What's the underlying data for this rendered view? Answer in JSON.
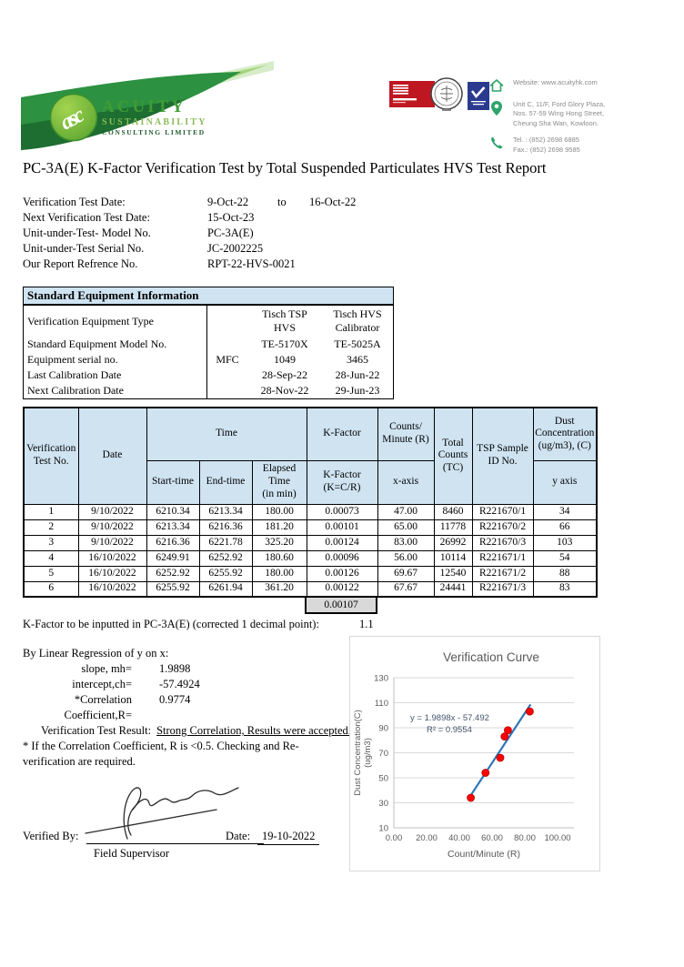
{
  "branding": {
    "logo_initials": "asc",
    "company_name": "ACUITY",
    "company_sub1": "SUSTAINABILITY",
    "company_sub2": "CONSULTING LIMITED",
    "brand_green": "#3f9c35"
  },
  "contact": {
    "website": "Website: www.acuityhk.com",
    "address1": "Unit C, 11/F, Ford Glory Plaza,",
    "address2": "Nos. 57-59 Wing Hong Street,",
    "address3": "Cheung Sha Wan, Kowloon.",
    "tel": "Tel. : (852) 2698 6885",
    "fax": "Fax.: (852) 2698 9585"
  },
  "title": "PC-3A(E)  K-Factor Verification Test by Total Suspended Particulates HVS Test Report",
  "info": {
    "rows": [
      {
        "label": "Verification Test Date:",
        "value": "9-Oct-22",
        "to": "to",
        "value2": "16-Oct-22"
      },
      {
        "label": "Next Verification Test Date:",
        "value": "15-Oct-23"
      },
      {
        "label": "Unit-under-Test- Model No.",
        "value": "PC-3A(E)"
      },
      {
        "label": "Unit-under-Test Serial No.",
        "value": "JC-2002225"
      },
      {
        "label": "Our Report Refrence No.",
        "value": "RPT-22-HVS-0021"
      }
    ]
  },
  "equipment": {
    "title": "Standard Equipment Information",
    "rows": [
      {
        "label": "Verification Equipment Type",
        "mfc": "",
        "c1": "Tisch TSP\nHVS",
        "c2": "Tisch HVS\nCalibrator"
      },
      {
        "label": "Standard Equipment Model No.",
        "mfc": "",
        "c1": "TE-5170X",
        "c2": "TE-5025A"
      },
      {
        "label": "Equipment serial no.",
        "mfc": "MFC",
        "c1": "1049",
        "c2": "3465"
      },
      {
        "label": "Last Calibration Date",
        "mfc": "",
        "c1": "28-Sep-22",
        "c2": "28-Jun-22"
      },
      {
        "label": "Next Calibration Date",
        "mfc": "",
        "c1": "28-Nov-22",
        "c2": "29-Jun-23"
      }
    ]
  },
  "main_table": {
    "h": {
      "verification": "Verification\nTest No.",
      "date": "Date",
      "time": "Time",
      "start": "Start-time",
      "end": "End-time",
      "elapsed": "Elapsed\nTime\n(in min)",
      "kfactor_top": "K-Factor",
      "kfactor_sub": "K-Factor\n(K=C/R)",
      "counts_top": "Counts/\nMinute (R)",
      "counts_sub": "x-axis",
      "total": "Total\nCounts\n(TC)",
      "tsp": "TSP Sample\nID No.",
      "dust": "Dust\nConcentration\n(ug/m3), (C)",
      "dust_sub": "y axis"
    },
    "rows": [
      [
        "1",
        "9/10/2022",
        "6210.34",
        "6213.34",
        "180.00",
        "0.00073",
        "47.00",
        "8460",
        "R221670/1",
        "34"
      ],
      [
        "2",
        "9/10/2022",
        "6213.34",
        "6216.36",
        "181.20",
        "0.00101",
        "65.00",
        "11778",
        "R221670/2",
        "66"
      ],
      [
        "3",
        "9/10/2022",
        "6216.36",
        "6221.78",
        "325.20",
        "0.00124",
        "83.00",
        "26992",
        "R221670/3",
        "103"
      ],
      [
        "4",
        "16/10/2022",
        "6249.91",
        "6252.92",
        "180.60",
        "0.00096",
        "56.00",
        "10114",
        "R221671/1",
        "54"
      ],
      [
        "5",
        "16/10/2022",
        "6252.92",
        "6255.92",
        "180.00",
        "0.00126",
        "69.67",
        "12540",
        "R221671/2",
        "88"
      ],
      [
        "6",
        "16/10/2022",
        "6255.92",
        "6261.94",
        "361.20",
        "0.00122",
        "67.67",
        "24441",
        "R221671/3",
        "83"
      ]
    ],
    "average_k": "0.00107"
  },
  "kfactor_note": {
    "label": "K-Factor to be inputted in PC-3A(E) (corrected 1 decimal point):",
    "value": "1.1"
  },
  "regression": {
    "heading": "By Linear Regression of y on x:",
    "slope_label": "slope, mh=",
    "slope_value": "1.9898",
    "intercept_label": "intercept,ch=",
    "intercept_value": "-57.4924",
    "corr_label": "*Correlation Coefficient,R=",
    "corr_value": "0.9774",
    "result_label": "Verification Test Result:",
    "result_value": "Strong Correlation, Results were accepted.",
    "note1": "* If the Correlation Coefficient, R is <0.5. Checking and Re-",
    "note2": "verification are required."
  },
  "chart_data": {
    "type": "scatter",
    "title": "Verification Curve",
    "xlabel": "Count/Minute (R)",
    "ylabel_line1": "Dust Concentration(C)",
    "ylabel_line2": "(ug/m3)",
    "x": [
      47.0,
      65.0,
      83.0,
      56.0,
      69.67,
      67.67
    ],
    "y": [
      34,
      66,
      103,
      54,
      88,
      83
    ],
    "xlim": [
      0,
      110
    ],
    "ylim": [
      10,
      130
    ],
    "xticks": [
      "0.00",
      "20.00",
      "40.00",
      "60.00",
      "80.00",
      "100.00"
    ],
    "yticks": [
      "10",
      "30",
      "50",
      "70",
      "90",
      "110",
      "130"
    ],
    "grid": "horizontal",
    "legend": "none",
    "annotation_eq": "y = 1.9898x - 57.492",
    "annotation_r2": "R² = 0.9554",
    "trendline": {
      "slope": 1.9898,
      "intercept": -57.492,
      "x_start": 46,
      "x_end": 83.5
    },
    "colors": {
      "points": "#ff0000",
      "point_edge": "#b30000",
      "line": "#2e75b6",
      "text": "#595959",
      "annotation": "#44546a",
      "grid": "#d9d9d9",
      "axis": "#bfbfbf"
    }
  },
  "signature": {
    "verified_label": "Verified By:",
    "role": "Field Supervisor",
    "date_label": "Date:",
    "date_value": "19-10-2022"
  }
}
